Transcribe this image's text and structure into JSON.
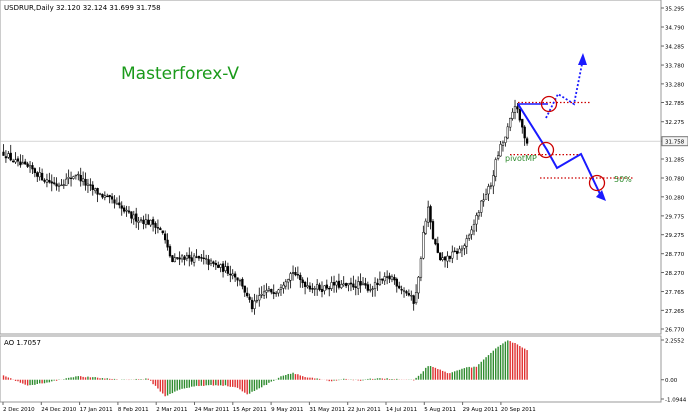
{
  "chart_data": [
    {
      "type": "candlestick",
      "header": "USDRUR,Daily  32.120 32.124 31.699 31.758",
      "watermark": "Masterforex-V",
      "ylim": [
        26.77,
        35.295
      ],
      "y_ticks": [
        "35.295",
        "34.790",
        "34.285",
        "33.780",
        "33.280",
        "32.785",
        "32.275",
        "31.758",
        "31.285",
        "30.780",
        "30.280",
        "29.775",
        "29.275",
        "28.770",
        "28.270",
        "27.765",
        "27.265",
        "26.770"
      ],
      "current_price": "31.758",
      "x_ticks": [
        "2 Dec 2010",
        "24 Dec 2010",
        "17 Jan 2011",
        "8 Feb 2011",
        "2 Mar 2011",
        "24 Mar 2011",
        "15 Apr 2011",
        "9 May 2011",
        "31 May 2011",
        "22 Jun 2011",
        "14 Jul 2011",
        "5 Aug 2011",
        "29 Aug 2011",
        "20 Sep 2011"
      ],
      "close_path": [
        [
          0,
          31.45
        ],
        [
          6,
          31.15
        ],
        [
          12,
          31.0
        ],
        [
          17,
          30.75
        ],
        [
          22,
          30.6
        ],
        [
          27,
          30.75
        ],
        [
          30,
          30.9
        ],
        [
          35,
          30.55
        ],
        [
          40,
          30.35
        ],
        [
          45,
          30.15
        ],
        [
          49,
          29.95
        ],
        [
          53,
          29.75
        ],
        [
          58,
          29.65
        ],
        [
          63,
          29.55
        ],
        [
          66,
          29.3
        ],
        [
          68,
          28.9
        ],
        [
          70,
          28.55
        ],
        [
          73,
          28.7
        ],
        [
          78,
          28.65
        ],
        [
          83,
          28.6
        ],
        [
          88,
          28.45
        ],
        [
          92,
          28.35
        ],
        [
          96,
          28.2
        ],
        [
          99,
          27.95
        ],
        [
          101,
          27.6
        ],
        [
          103,
          27.35
        ],
        [
          105,
          27.5
        ],
        [
          108,
          27.75
        ],
        [
          113,
          27.8
        ],
        [
          117,
          28.1
        ],
        [
          120,
          28.3
        ],
        [
          123,
          28.05
        ],
        [
          127,
          27.9
        ],
        [
          132,
          27.85
        ],
        [
          137,
          27.95
        ],
        [
          142,
          27.9
        ],
        [
          147,
          27.95
        ],
        [
          152,
          27.85
        ],
        [
          157,
          28.05
        ],
        [
          161,
          28.15
        ],
        [
          164,
          27.9
        ],
        [
          167,
          27.75
        ],
        [
          170,
          27.5
        ],
        [
          172,
          28.1
        ],
        [
          174,
          29.3
        ],
        [
          176,
          29.95
        ],
        [
          178,
          29.2
        ],
        [
          181,
          28.55
        ],
        [
          185,
          28.7
        ],
        [
          190,
          28.9
        ],
        [
          193,
          29.2
        ],
        [
          196,
          29.75
        ],
        [
          199,
          30.25
        ],
        [
          202,
          30.6
        ],
        [
          204,
          31.2
        ],
        [
          206,
          31.6
        ],
        [
          208,
          31.85
        ],
        [
          210,
          32.3
        ],
        [
          212,
          32.75
        ],
        [
          214,
          32.3
        ],
        [
          216,
          31.9
        ],
        [
          217,
          31.76
        ]
      ],
      "annotations": [
        "pivotMP",
        "50%"
      ],
      "pivot_levels": [
        32.785,
        31.4,
        30.78
      ]
    },
    {
      "type": "bar",
      "title": "AO 1.7057",
      "ylim": [
        -1.0944,
        2.2552
      ],
      "y_ticks": [
        "2.2552",
        "0.00",
        "-1.0944"
      ],
      "up_color": "#2e8b2e",
      "down_color": "#e03030",
      "value_path": [
        [
          0,
          0.25
        ],
        [
          10,
          -0.35
        ],
        [
          20,
          -0.1
        ],
        [
          30,
          0.2
        ],
        [
          40,
          0.1
        ],
        [
          50,
          0.0
        ],
        [
          60,
          0.05
        ],
        [
          64,
          -0.5
        ],
        [
          67,
          -0.95
        ],
        [
          72,
          -0.6
        ],
        [
          80,
          -0.35
        ],
        [
          90,
          -0.3
        ],
        [
          97,
          -0.45
        ],
        [
          101,
          -0.85
        ],
        [
          105,
          -0.55
        ],
        [
          110,
          -0.2
        ],
        [
          115,
          0.2
        ],
        [
          120,
          0.4
        ],
        [
          125,
          0.15
        ],
        [
          130,
          0.05
        ],
        [
          136,
          -0.1
        ],
        [
          142,
          0.05
        ],
        [
          148,
          -0.05
        ],
        [
          155,
          0.1
        ],
        [
          160,
          0.05
        ],
        [
          166,
          0.0
        ],
        [
          170,
          -0.05
        ],
        [
          172,
          0.2
        ],
        [
          176,
          0.8
        ],
        [
          180,
          0.6
        ],
        [
          185,
          0.35
        ],
        [
          190,
          0.65
        ],
        [
          196,
          0.75
        ],
        [
          202,
          1.5
        ],
        [
          206,
          2.0
        ],
        [
          209,
          2.25
        ],
        [
          213,
          2.0
        ],
        [
          217,
          1.71
        ]
      ]
    }
  ]
}
